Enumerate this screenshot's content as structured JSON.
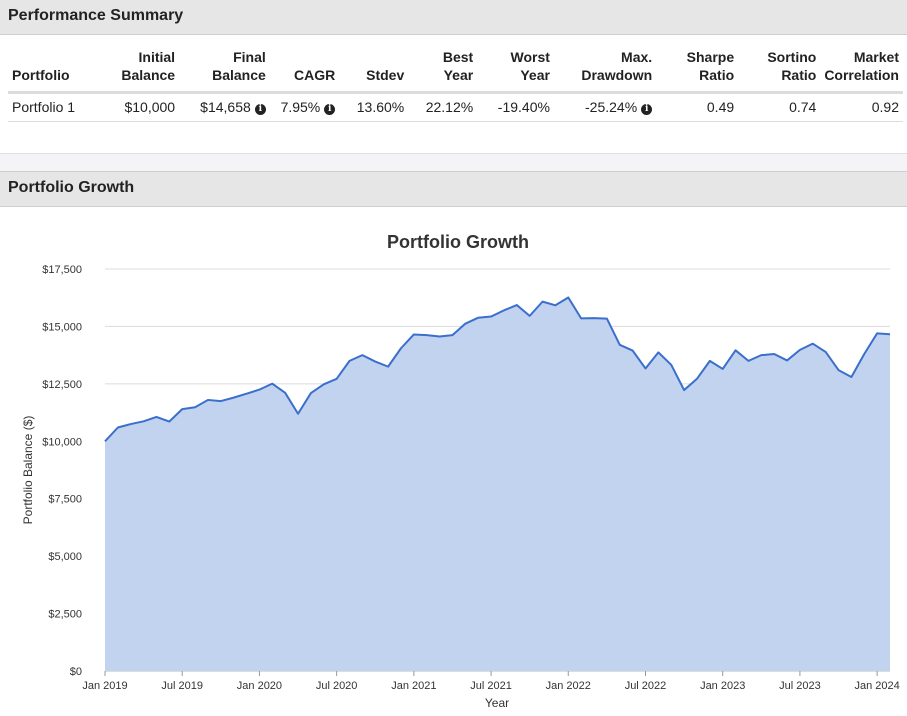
{
  "sections": {
    "summary_title": "Performance Summary",
    "growth_title": "Portfolio Growth"
  },
  "summary_table": {
    "headers": [
      [
        "",
        "Portfolio"
      ],
      [
        "Initial",
        "Balance"
      ],
      [
        "Final",
        "Balance"
      ],
      [
        "",
        "CAGR"
      ],
      [
        "",
        "Stdev"
      ],
      [
        "Best",
        "Year"
      ],
      [
        "Worst",
        "Year"
      ],
      [
        "Max.",
        "Drawdown"
      ],
      [
        "Sharpe",
        "Ratio"
      ],
      [
        "Sortino",
        "Ratio"
      ],
      [
        "Market",
        "Correlation"
      ]
    ],
    "rows": [
      {
        "portfolio": "Portfolio 1",
        "initial_balance": "$10,000",
        "final_balance": "$14,658",
        "cagr": "7.95%",
        "stdev": "13.60%",
        "best_year": "22.12%",
        "worst_year": "-19.40%",
        "max_drawdown": "-25.24%",
        "sharpe_ratio": "0.49",
        "sortino_ratio": "0.74",
        "market_correlation": "0.92"
      }
    ],
    "info_icon_glyph": "i"
  },
  "colors": {
    "line": "#3a6fcc",
    "fill": "#c2d3f0",
    "grid": "#dcdcdc"
  },
  "chart_data": {
    "type": "area",
    "title": "Portfolio Growth",
    "xlabel": "Year",
    "ylabel": "Portfolio Balance ($)",
    "ylim": [
      0,
      17500
    ],
    "yticks": [
      0,
      2500,
      5000,
      7500,
      10000,
      12500,
      15000,
      17500
    ],
    "ytick_labels": [
      "$0",
      "$2,500",
      "$5,000",
      "$7,500",
      "$10,000",
      "$12,500",
      "$15,000",
      "$17,500"
    ],
    "xtick_labels": [
      "Jan 2019",
      "Jul 2019",
      "Jan 2020",
      "Jul 2020",
      "Jan 2021",
      "Jul 2021",
      "Jan 2022",
      "Jul 2022",
      "Jan 2023",
      "Jul 2023",
      "Jan 2024"
    ],
    "xtick_index": [
      0,
      6,
      12,
      18,
      24,
      30,
      36,
      42,
      48,
      54,
      60
    ],
    "grid": true,
    "legend": "none",
    "x": [
      "2019-01",
      "2019-02",
      "2019-03",
      "2019-04",
      "2019-05",
      "2019-06",
      "2019-07",
      "2019-08",
      "2019-09",
      "2019-10",
      "2019-11",
      "2019-12",
      "2020-01",
      "2020-02",
      "2020-03",
      "2020-04",
      "2020-05",
      "2020-06",
      "2020-07",
      "2020-08",
      "2020-09",
      "2020-10",
      "2020-11",
      "2020-12",
      "2021-01",
      "2021-02",
      "2021-03",
      "2021-04",
      "2021-05",
      "2021-06",
      "2021-07",
      "2021-08",
      "2021-09",
      "2021-10",
      "2021-11",
      "2021-12",
      "2022-01",
      "2022-02",
      "2022-03",
      "2022-04",
      "2022-05",
      "2022-06",
      "2022-07",
      "2022-08",
      "2022-09",
      "2022-10",
      "2022-11",
      "2022-12",
      "2023-01",
      "2023-02",
      "2023-03",
      "2023-04",
      "2023-05",
      "2023-06",
      "2023-07",
      "2023-08",
      "2023-09",
      "2023-10",
      "2023-11",
      "2023-12",
      "2024-01",
      "2024-02"
    ],
    "series": [
      {
        "values": [
          10000,
          10600,
          10750,
          10870,
          11060,
          10860,
          11400,
          11480,
          11800,
          11750,
          11900,
          12070,
          12250,
          12510,
          12110,
          11200,
          12100,
          12480,
          12720,
          13500,
          13750,
          13470,
          13250,
          14050,
          14650,
          14620,
          14560,
          14620,
          15120,
          15380,
          15430,
          15700,
          15930,
          15460,
          16080,
          15920,
          16260,
          15350,
          15360,
          15340,
          14200,
          13950,
          13170,
          13870,
          13330,
          12230,
          12720,
          13500,
          13150,
          13960,
          13500,
          13750,
          13800,
          13520,
          13980,
          14250,
          13890,
          13100,
          12800,
          13800,
          14700,
          14658
        ]
      }
    ]
  }
}
